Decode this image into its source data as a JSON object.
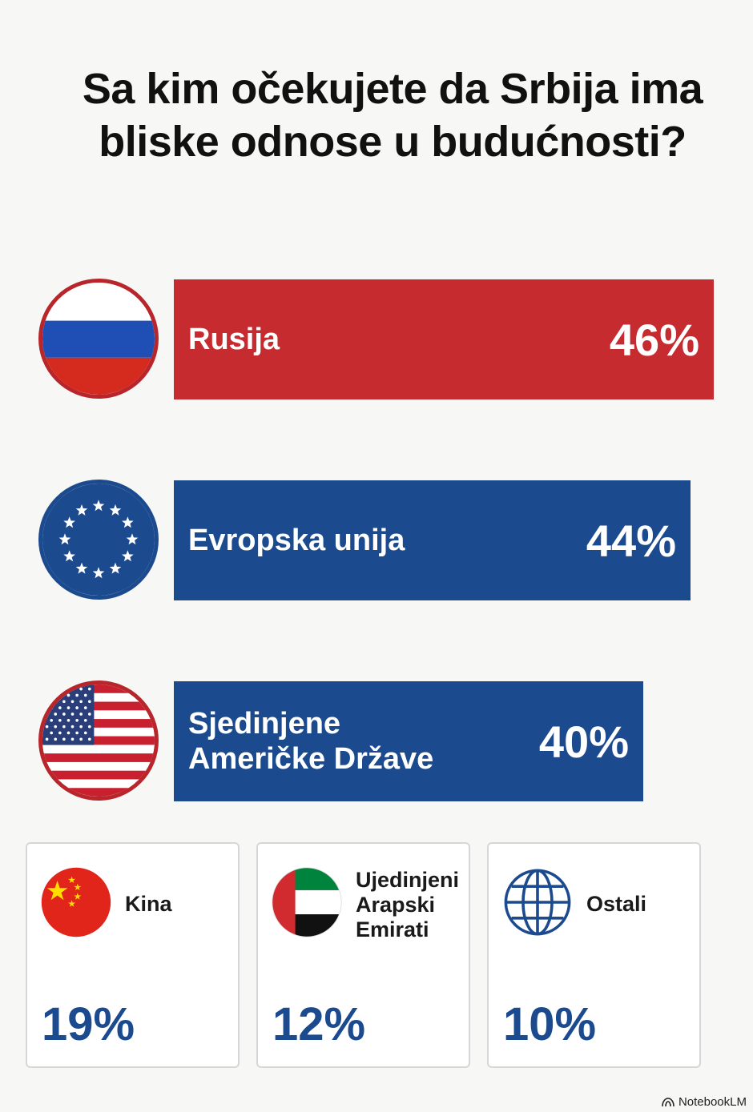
{
  "title": "Sa kim očekujete da Srbija ima bliske odnose u budućnosti?",
  "chart_data": {
    "type": "bar",
    "title": "Sa kim očekujete da Srbija ima bliske odnose u budućnosti?",
    "categories": [
      "Rusija",
      "Evropska unija",
      "Sjedinjene Američke Države",
      "Kina",
      "Ujedinjeni Arapski Emirati",
      "Ostali"
    ],
    "values": [
      46,
      44,
      40,
      19,
      12,
      10
    ],
    "value_labels": [
      "46%",
      "44%",
      "40%",
      "19%",
      "12%",
      "10%"
    ],
    "bar_colors": [
      "#c62b2f",
      "#1c4a8e",
      "#1c4a8e"
    ],
    "value_color_cards": "#1c4a8e"
  },
  "bars": [
    {
      "label": "Rusija",
      "line1": "Rusija",
      "line2": "",
      "value": 46,
      "pct": "46%",
      "color": "#c62b2f",
      "icon": "russia-flag-icon"
    },
    {
      "label": "Evropska unija",
      "line1": "Evropska unija",
      "line2": "",
      "value": 44,
      "pct": "44%",
      "color": "#1c4a8e",
      "icon": "eu-flag-icon"
    },
    {
      "label": "Sjedinjene Američke Države",
      "line1": "Sjedinjene",
      "line2": "Američke Države",
      "value": 40,
      "pct": "40%",
      "color": "#1c4a8e",
      "icon": "usa-flag-icon"
    }
  ],
  "cards": [
    {
      "label": "Kina",
      "lines": [
        "Kina"
      ],
      "value": 19,
      "pct": "19%",
      "icon": "china-flag-icon"
    },
    {
      "label": "Ujedinjeni Arapski Emirati",
      "lines": [
        "Ujedinjeni",
        "Arapski",
        "Emirati"
      ],
      "value": 12,
      "pct": "12%",
      "icon": "uae-flag-icon"
    },
    {
      "label": "Ostali",
      "lines": [
        "Ostali"
      ],
      "value": 10,
      "pct": "10%",
      "icon": "globe-icon"
    }
  ],
  "brand": "NotebookLM"
}
